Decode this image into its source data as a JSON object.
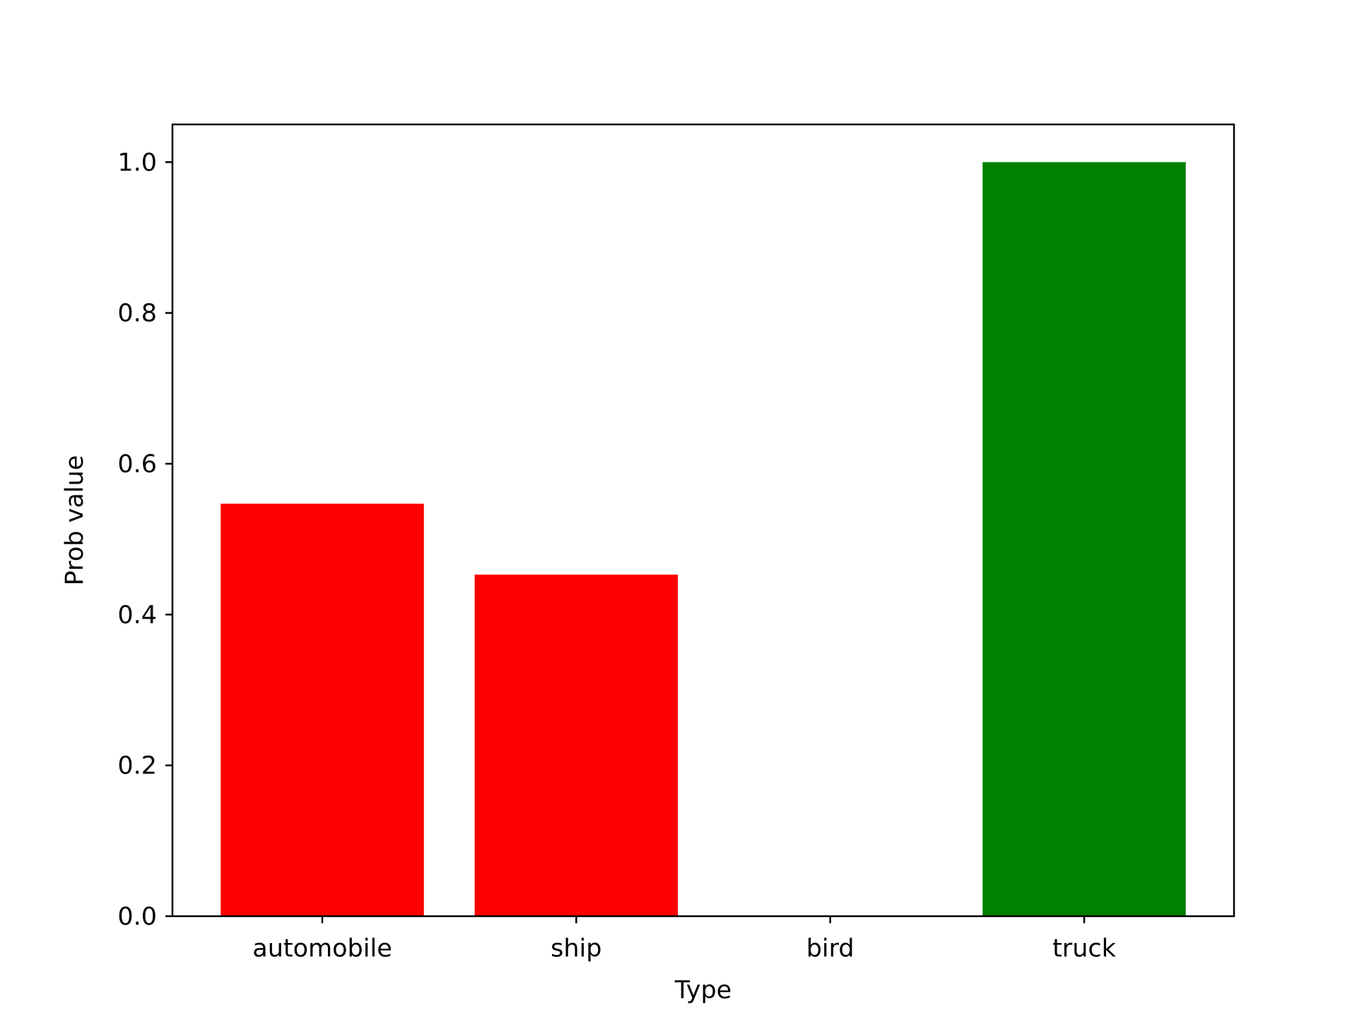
{
  "chart_data": {
    "type": "bar",
    "title": "",
    "xlabel": "Type",
    "ylabel": "Prob value",
    "categories": [
      "automobile",
      "ship",
      "bird",
      "truck"
    ],
    "values": [
      0.547,
      0.453,
      0.0,
      1.0
    ],
    "bar_colors": [
      "#ff0000",
      "#ff0000",
      "#ff0000",
      "#008000"
    ],
    "ylim": [
      0,
      1.05
    ],
    "yticks": [
      0.0,
      0.2,
      0.4,
      0.6,
      0.8,
      1.0
    ],
    "ytick_labels": [
      "0.0",
      "0.2",
      "0.4",
      "0.6",
      "0.8",
      "1.0"
    ],
    "grid": false,
    "legend": false
  }
}
